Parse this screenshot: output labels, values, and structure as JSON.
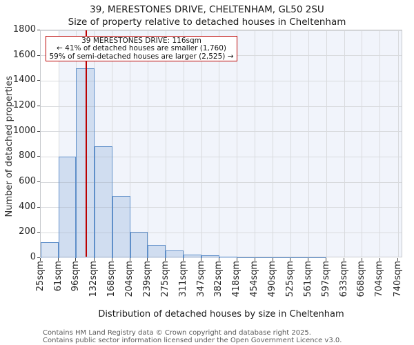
{
  "title": "39, MERESTONES DRIVE, CHELTENHAM, GL50 2SU",
  "subtitle": "Size of property relative to detached houses in Cheltenham",
  "annotation": {
    "line1": "39 MERESTONES DRIVE: 116sqm",
    "line2": "← 41% of detached houses are smaller (1,760)",
    "line3": "59% of semi-detached houses are larger (2,525) →"
  },
  "footer": {
    "line1": "Contains HM Land Registry data © Crown copyright and database right 2025.",
    "line2": "Contains public sector information licensed under the Open Government Licence v3.0."
  },
  "chart_data": {
    "type": "bar",
    "title": "39, MERESTONES DRIVE, CHELTENHAM, GL50 2SU",
    "subtitle": "Size of property relative to detached houses in Cheltenham",
    "xlabel": "Distribution of detached houses by size in Cheltenham",
    "ylabel": "Number of detached properties",
    "bin_edges_sqm": [
      25,
      61,
      96,
      132,
      168,
      204,
      239,
      275,
      311,
      347,
      382,
      418,
      454,
      490,
      525,
      561,
      597,
      633,
      668,
      704,
      740
    ],
    "x_tick_labels": [
      "25sqm",
      "61sqm",
      "96sqm",
      "132sqm",
      "168sqm",
      "204sqm",
      "239sqm",
      "275sqm",
      "311sqm",
      "347sqm",
      "382sqm",
      "418sqm",
      "454sqm",
      "490sqm",
      "525sqm",
      "561sqm",
      "597sqm",
      "633sqm",
      "668sqm",
      "704sqm",
      "740sqm"
    ],
    "values": [
      125,
      800,
      1500,
      885,
      490,
      205,
      105,
      60,
      30,
      20,
      12,
      5,
      5,
      5,
      5,
      5,
      0,
      0,
      0,
      0
    ],
    "y_ticks": [
      0,
      200,
      400,
      600,
      800,
      1000,
      1200,
      1400,
      1600,
      1800
    ],
    "ylim": [
      0,
      1800
    ],
    "grid": true,
    "legend": "none",
    "marker_value_sqm": 116,
    "shaded_band_from_sqm": 61,
    "colors": {
      "bar_fill": "#dce4f3",
      "bar_edge": "#5f8fc9",
      "marker_line": "#bb0000",
      "annotation_border": "#bb0000",
      "gridline": "#d8dadd",
      "plot_band": "#f1f4fb",
      "background": "#ffffff"
    }
  }
}
